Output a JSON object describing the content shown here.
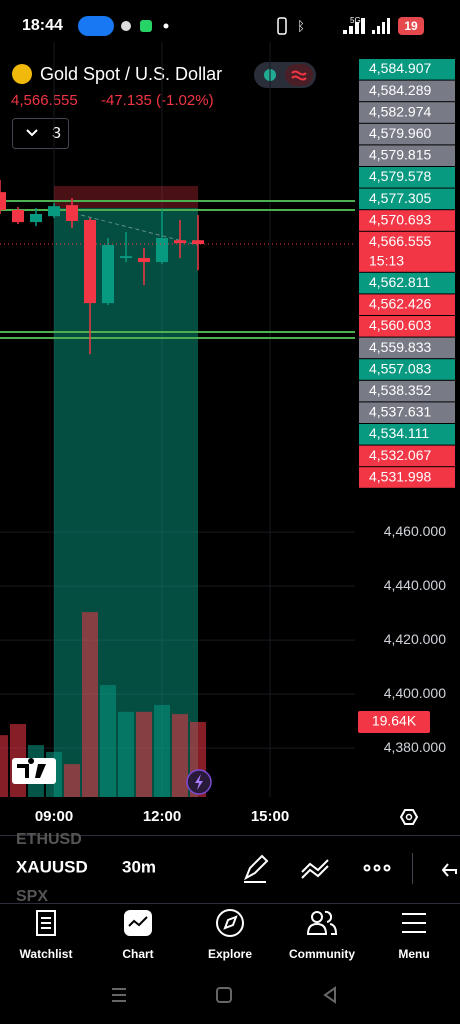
{
  "status_bar": {
    "time": "18:44",
    "network": "5G",
    "battery": "19"
  },
  "header": {
    "title": "Gold Spot / U.S. Dollar",
    "price": "4,566.555",
    "change": "-47.135 (-1.02%)",
    "indicator_count": "3"
  },
  "chart_data": {
    "type": "candlestick",
    "open": [
      4585.9,
      4579.3,
      4574.8,
      4577.0,
      4581.1,
      4575.6,
      4544.8,
      4561.5,
      4561.5,
      4560.0,
      4568.1,
      4568.1
    ],
    "high": [
      4590.4,
      4580.4,
      4580.0,
      4581.9,
      4583.7,
      4576.3,
      4568.9,
      4571.1,
      4565.2,
      4579.3,
      4575.6,
      4577.4
    ],
    "low": [
      4577.8,
      4574.1,
      4573.3,
      4576.3,
      4572.6,
      4525.9,
      4544.1,
      4560.0,
      4551.5,
      4559.3,
      4561.5,
      4557.0
    ],
    "close": [
      4579.3,
      4574.8,
      4577.8,
      4580.7,
      4575.2,
      4544.8,
      4566.3,
      4562.2,
      4560.0,
      4568.9,
      4567.0,
      4566.7
    ],
    "volume": [
      16.2,
      19.1,
      13.6,
      11.8,
      8.6,
      48.4,
      29.3,
      22.3,
      22.3,
      24.1,
      21.7,
      19.64
    ],
    "volume_label": "19.64K",
    "up_color": "#089981",
    "down_color": "#f23645",
    "ylim": [
      4361.9,
      4641.5
    ],
    "yticks": [
      {
        "value": 4460,
        "label": "4,460.000"
      },
      {
        "value": 4440,
        "label": "4,440.000"
      },
      {
        "value": 4420,
        "label": "4,420.000"
      },
      {
        "value": 4400,
        "label": "4,400.000"
      },
      {
        "value": 4380,
        "label": "4,380.000"
      }
    ],
    "x_labels": [
      "09:00",
      "12:00",
      "15:00"
    ],
    "price_labels": [
      {
        "label": "4,584.907",
        "color": "#089981"
      },
      {
        "label": "4,584.289",
        "color": "#787b86"
      },
      {
        "label": "4,582.974",
        "color": "#787b86"
      },
      {
        "label": "4,579.960",
        "color": "#787b86"
      },
      {
        "label": "4,579.815",
        "color": "#787b86"
      },
      {
        "label": "4,579.578",
        "color": "#089981"
      },
      {
        "label": "4,577.305",
        "color": "#089981"
      },
      {
        "label": "4,570.693",
        "color": "#f23645"
      },
      {
        "label": "4,566.555",
        "color": "#f23645",
        "countdown": "15:13"
      },
      {
        "label": "4,562.811",
        "color": "#089981"
      },
      {
        "label": "4,562.426",
        "color": "#f23645"
      },
      {
        "label": "4,560.603",
        "color": "#f23645"
      },
      {
        "label": "4,559.833",
        "color": "#787b86"
      },
      {
        "label": "4,557.083",
        "color": "#089981"
      },
      {
        "label": "4,538.352",
        "color": "#787b86"
      },
      {
        "label": "4,537.631",
        "color": "#787b86"
      },
      {
        "label": "4,534.111",
        "color": "#089981"
      },
      {
        "label": "4,532.067",
        "color": "#f23645"
      },
      {
        "label": "4,531.998",
        "color": "#f23645"
      }
    ]
  },
  "toolbar": {
    "symbol_above": "ETHUSD",
    "symbol": "XAUUSD",
    "interval": "30m",
    "symbol_below": "SPX"
  },
  "nav": [
    "Watchlist",
    "Chart",
    "Explore",
    "Community",
    "Menu"
  ]
}
